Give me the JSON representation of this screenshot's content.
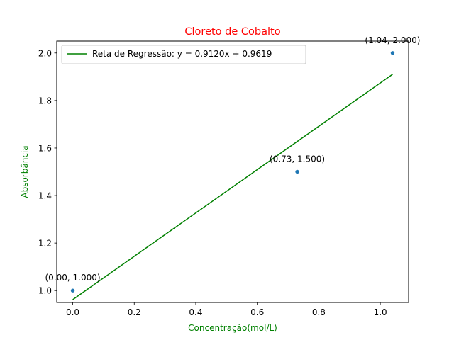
{
  "chart_data": {
    "type": "scatter",
    "title": "Cloreto de Cobalto",
    "xlabel": "Concentração(mol/L)",
    "ylabel": "Absorbância",
    "xlim": [
      -0.052,
      1.092
    ],
    "ylim": [
      0.95,
      2.05
    ],
    "xticks": [
      0.0,
      0.2,
      0.4,
      0.6,
      0.8,
      1.0
    ],
    "xtick_labels": [
      "0.0",
      "0.2",
      "0.4",
      "0.6",
      "0.8",
      "1.0"
    ],
    "yticks": [
      1.0,
      1.2,
      1.4,
      1.6,
      1.8,
      2.0
    ],
    "ytick_labels": [
      "1.0",
      "1.2",
      "1.4",
      "1.6",
      "1.8",
      "2.0"
    ],
    "grid": false,
    "legend_position": "top-left",
    "points": [
      {
        "x": 0.0,
        "y": 1.0,
        "label": "(0.00, 1.000)"
      },
      {
        "x": 0.73,
        "y": 1.5,
        "label": "(0.73, 1.500)"
      },
      {
        "x": 1.04,
        "y": 2.0,
        "label": "(1.04, 2.000)"
      }
    ],
    "regression": {
      "label": "Reta de Regressão: y = 0.9120x + 0.9619",
      "slope": 0.912,
      "intercept": 0.9619,
      "x_start": 0.0,
      "x_end": 1.04
    },
    "colors": {
      "title": "#ff0000",
      "axis_labels": "#008000",
      "points": "#1f77b4",
      "regression": "#008000"
    }
  }
}
